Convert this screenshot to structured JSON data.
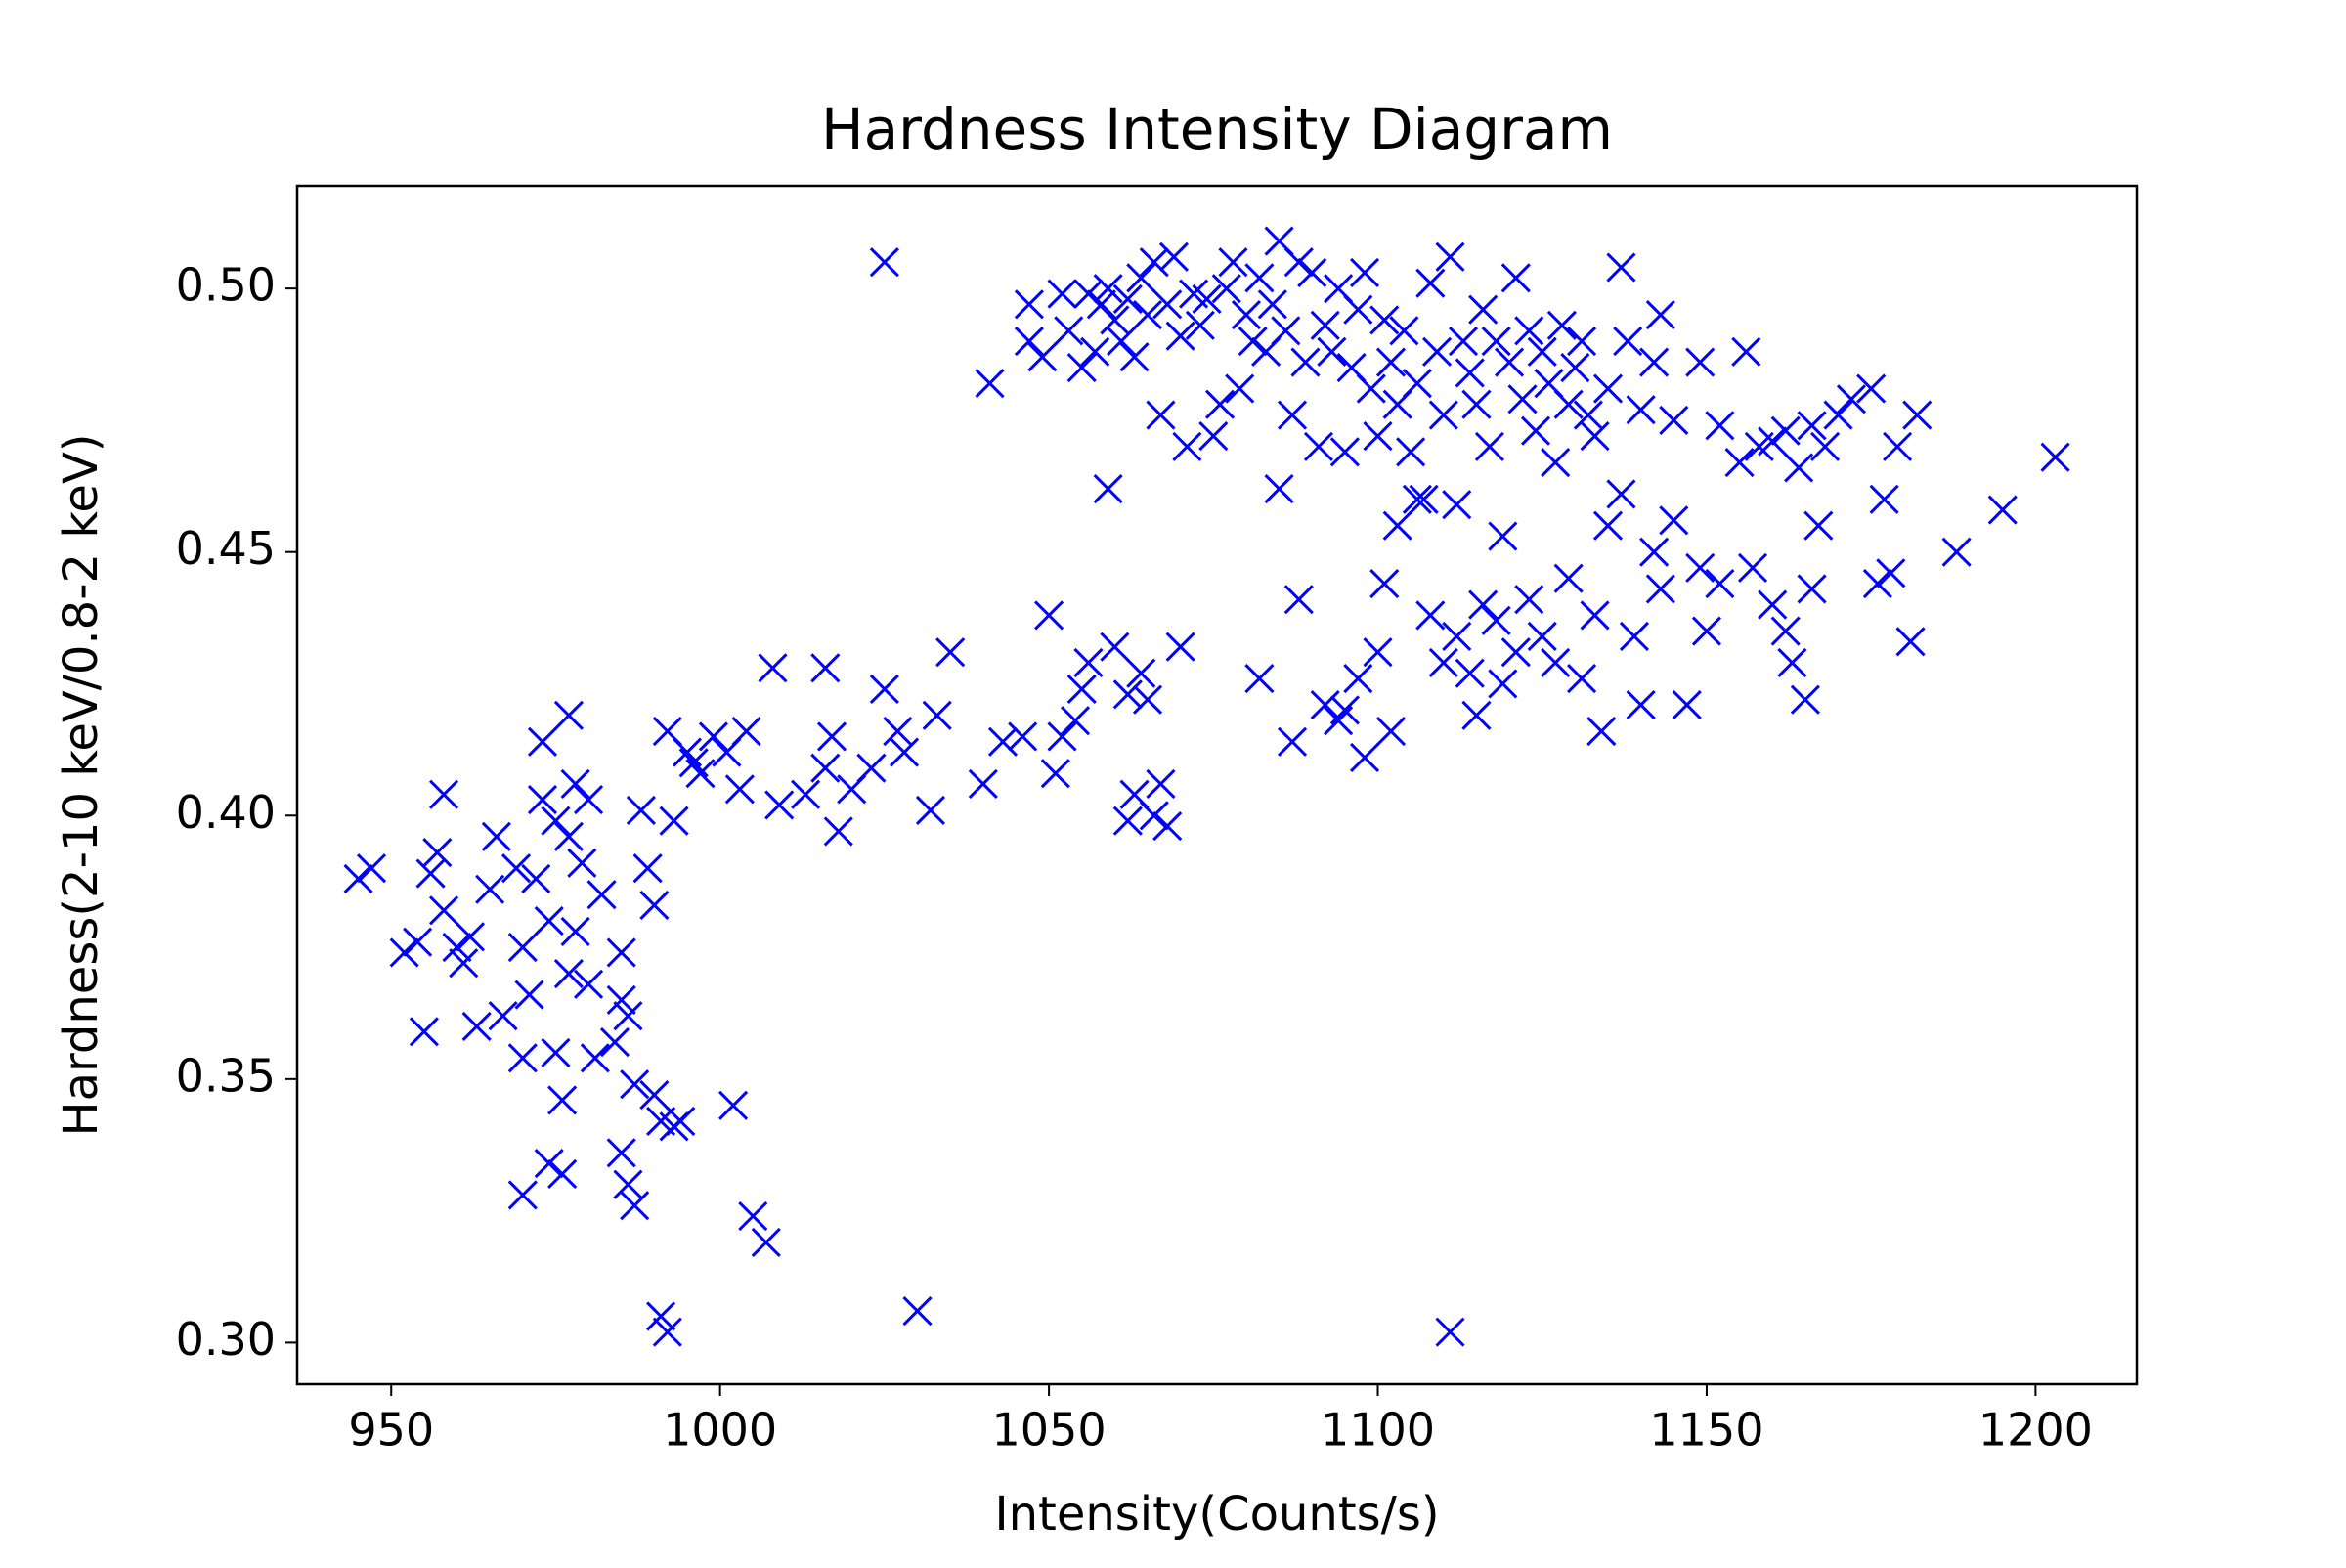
{
  "chart_data": {
    "type": "scatter",
    "title": "Hardness Intensity Diagram",
    "x_label": "Intensity(Counts/s)",
    "y_label": "Hardness(2-10 keV/0.8-2 keV)",
    "xlim": [
      935.7,
      1215.4
    ],
    "ylim": [
      0.2921,
      0.5195
    ],
    "xticks": [
      950,
      1000,
      1050,
      1100,
      1150,
      1200
    ],
    "yticks": [
      {
        "value": 0.3,
        "label": "0.30"
      },
      {
        "value": 0.35,
        "label": "0.35"
      },
      {
        "value": 0.4,
        "label": "0.40"
      },
      {
        "value": 0.45,
        "label": "0.45"
      },
      {
        "value": 0.5,
        "label": "0.50"
      }
    ],
    "grid": false,
    "series": [
      {
        "color": "#0000ff",
        "marker": "x",
        "x": [
          945,
          947,
          952,
          954,
          955,
          956,
          957,
          958,
          958,
          960,
          961,
          962,
          963,
          965,
          966,
          967,
          969,
          970,
          970,
          970,
          971,
          972,
          973,
          973,
          974,
          974,
          975,
          975,
          976,
          976,
          977,
          977,
          977,
          978,
          978,
          979,
          980,
          980,
          981,
          982,
          984,
          985,
          985,
          985,
          986,
          986,
          987,
          987,
          988,
          989,
          990,
          990,
          991,
          991,
          992,
          993,
          993,
          994,
          992,
          995,
          996,
          997,
          999,
          1001,
          1002,
          1003,
          1004,
          1005,
          1007,
          1008,
          1009,
          1013,
          1016,
          1016,
          1017,
          1018,
          1020,
          1023,
          1025,
          1025,
          1027,
          1028,
          1030,
          1032,
          1033,
          1035,
          1040,
          1041,
          1043,
          1046,
          1050,
          1051,
          1052,
          1054,
          1055,
          1056,
          1059,
          1060,
          1062,
          1062,
          1063,
          1064,
          1065,
          1066,
          1067,
          1068,
          1070,
          1082,
          1087,
          1088,
          1047,
          1047,
          1049,
          1052,
          1053,
          1055,
          1056,
          1057,
          1058,
          1059,
          1060,
          1061,
          1062,
          1063,
          1064,
          1065,
          1066,
          1067,
          1068,
          1069,
          1070,
          1071,
          1072,
          1073,
          1074,
          1075,
          1076,
          1077,
          1078,
          1079,
          1080,
          1081,
          1082,
          1083,
          1084,
          1085,
          1085,
          1086,
          1087,
          1088,
          1089,
          1090,
          1091,
          1092,
          1093,
          1094,
          1095,
          1096,
          1097,
          1098,
          1099,
          1100,
          1101,
          1102,
          1103,
          1104,
          1105,
          1106,
          1107,
          1108,
          1109,
          1110,
          1111,
          1112,
          1113,
          1114,
          1115,
          1116,
          1117,
          1118,
          1119,
          1120,
          1121,
          1122,
          1123,
          1124,
          1125,
          1126,
          1127,
          1128,
          1129,
          1130,
          1131,
          1132,
          1133,
          1135,
          1137,
          1138,
          1140,
          1142,
          1143,
          1145,
          1149,
          1152,
          1155,
          1156,
          1158,
          1160,
          1162,
          1164,
          1166,
          1168,
          1170,
          1172,
          1175,
          1177,
          1179,
          1182,
          1188,
          1195,
          1203,
          1095,
          1097,
          1098,
          1100,
          1101,
          1102,
          1103,
          1106,
          1108,
          1110,
          1112,
          1114,
          1115,
          1116,
          1118,
          1119,
          1121,
          1123,
          1125,
          1127,
          1129,
          1131,
          1133,
          1134,
          1135,
          1137,
          1139,
          1140,
          1142,
          1143,
          1145,
          1147,
          1149,
          1150,
          1152,
          1157,
          1160,
          1162,
          1163,
          1165,
          1166,
          1167,
          1176,
          1178,
          1181,
          1111,
          1092,
          1094
        ],
        "y": [
          0.388,
          0.39,
          0.374,
          0.376,
          0.359,
          0.389,
          0.393,
          0.404,
          0.382,
          0.375,
          0.372,
          0.377,
          0.36,
          0.386,
          0.396,
          0.362,
          0.39,
          0.354,
          0.375,
          0.328,
          0.366,
          0.388,
          0.403,
          0.414,
          0.38,
          0.334,
          0.399,
          0.355,
          0.332,
          0.346,
          0.37,
          0.396,
          0.419,
          0.406,
          0.378,
          0.391,
          0.368,
          0.403,
          0.354,
          0.385,
          0.357,
          0.374,
          0.365,
          0.336,
          0.33,
          0.362,
          0.326,
          0.349,
          0.401,
          0.39,
          0.383,
          0.347,
          0.342,
          0.305,
          0.302,
          0.341,
          0.399,
          0.342,
          0.416,
          0.412,
          0.41,
          0.408,
          0.415,
          0.412,
          0.345,
          0.405,
          0.416,
          0.324,
          0.319,
          0.428,
          0.402,
          0.404,
          0.428,
          0.409,
          0.415,
          0.397,
          0.405,
          0.409,
          0.424,
          0.505,
          0.416,
          0.412,
          0.306,
          0.401,
          0.419,
          0.431,
          0.406,
          0.482,
          0.414,
          0.415,
          0.438,
          0.408,
          0.415,
          0.418,
          0.424,
          0.429,
          0.462,
          0.432,
          0.399,
          0.423,
          0.404,
          0.427,
          0.422,
          0.4,
          0.406,
          0.398,
          0.432,
          0.426,
          0.414,
          0.441,
          0.497,
          0.49,
          0.487,
          0.499,
          0.492,
          0.485,
          0.499,
          0.488,
          0.497,
          0.5,
          0.494,
          0.49,
          0.498,
          0.487,
          0.502,
          0.495,
          0.505,
          0.476,
          0.497,
          0.506,
          0.491,
          0.47,
          0.499,
          0.493,
          0.498,
          0.472,
          0.478,
          0.5,
          0.505,
          0.481,
          0.495,
          0.49,
          0.502,
          0.488,
          0.497,
          0.509,
          0.462,
          0.492,
          0.476,
          0.505,
          0.486,
          0.503,
          0.47,
          0.493,
          0.488,
          0.5,
          0.469,
          0.485,
          0.496,
          0.503,
          0.481,
          0.472,
          0.494,
          0.486,
          0.478,
          0.492,
          0.469,
          0.482,
          0.46,
          0.501,
          0.488,
          0.476,
          0.506,
          0.459,
          0.49,
          0.484,
          0.478,
          0.496,
          0.47,
          0.49,
          0.453,
          0.486,
          0.502,
          0.479,
          0.492,
          0.473,
          0.488,
          0.482,
          0.467,
          0.493,
          0.478,
          0.485,
          0.49,
          0.476,
          0.472,
          0.481,
          0.504,
          0.49,
          0.477,
          0.486,
          0.495,
          0.475,
          0.486,
          0.474,
          0.467,
          0.488,
          0.47,
          0.471,
          0.473,
          0.466,
          0.474,
          0.47,
          0.476,
          0.479,
          0.481,
          0.46,
          0.47,
          0.476,
          0.45,
          0.458,
          0.468,
          0.42,
          0.426,
          0.411,
          0.431,
          0.444,
          0.416,
          0.455,
          0.46,
          0.438,
          0.429,
          0.434,
          0.427,
          0.419,
          0.44,
          0.437,
          0.425,
          0.431,
          0.441,
          0.434,
          0.429,
          0.445,
          0.426,
          0.438,
          0.416,
          0.455,
          0.461,
          0.434,
          0.421,
          0.45,
          0.443,
          0.456,
          0.421,
          0.447,
          0.435,
          0.444,
          0.447,
          0.44,
          0.435,
          0.429,
          0.422,
          0.443,
          0.455,
          0.444,
          0.446,
          0.433,
          0.302,
          0.421,
          0.418
        ]
      }
    ]
  }
}
